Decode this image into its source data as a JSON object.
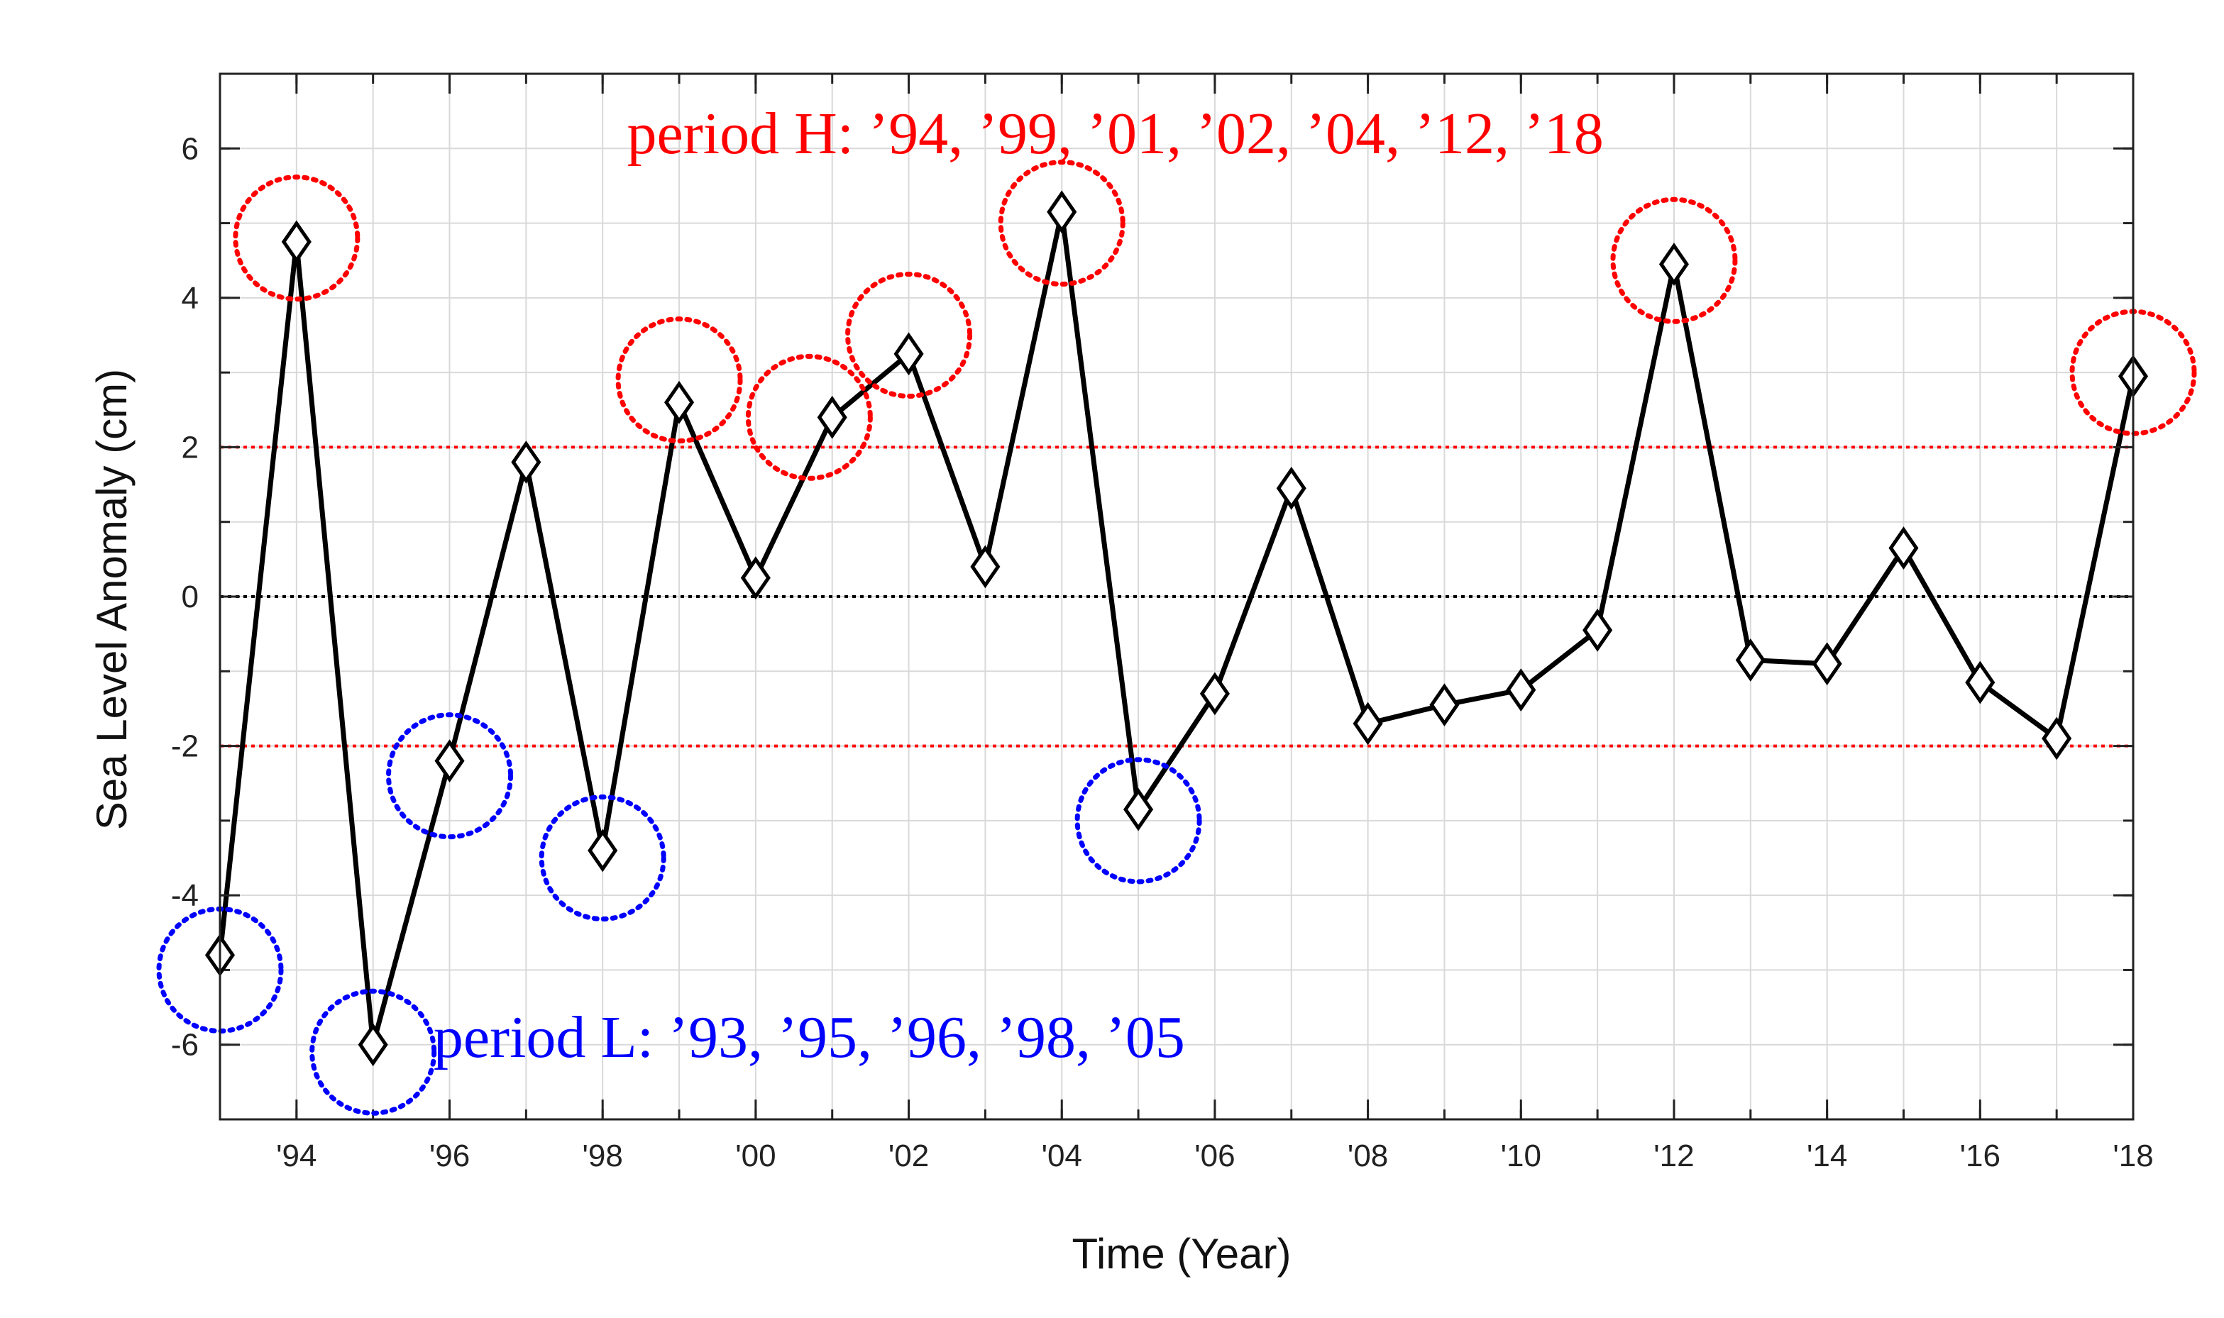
{
  "chart_data": {
    "type": "line",
    "xlabel": "Time (Year)",
    "ylabel": "Sea Level Anomaly (cm)",
    "xlim": [
      1993,
      2018
    ],
    "ylim": [
      -7,
      7
    ],
    "x_ticks": [
      1994,
      1996,
      1998,
      2000,
      2002,
      2004,
      2006,
      2008,
      2010,
      2012,
      2014,
      2016,
      2018
    ],
    "x_tick_labels": [
      "'94",
      "'96",
      "'98",
      "'00",
      "'02",
      "'04",
      "'06",
      "'08",
      "'10",
      "'12",
      "'14",
      "'16",
      "'18"
    ],
    "y_ticks": [
      -6,
      -4,
      -2,
      0,
      2,
      4,
      6
    ],
    "y_tick_labels": [
      "-6",
      "-4",
      "-2",
      "0",
      "2",
      "4",
      "6"
    ],
    "grid": true,
    "series": [
      {
        "name": "Sea Level Anomaly",
        "color": "#000000",
        "marker": "diamond",
        "x": [
          1993,
          1994,
          1995,
          1996,
          1997,
          1998,
          1999,
          2000,
          2001,
          2002,
          2003,
          2004,
          2005,
          2006,
          2007,
          2008,
          2009,
          2010,
          2011,
          2012,
          2013,
          2014,
          2015,
          2016,
          2017,
          2018
        ],
        "values": [
          -4.8,
          4.75,
          -6.0,
          -2.2,
          1.8,
          -3.4,
          2.6,
          0.25,
          2.4,
          3.25,
          0.4,
          5.15,
          -2.85,
          -1.3,
          1.45,
          -1.7,
          -1.45,
          -1.25,
          -0.45,
          4.45,
          -0.85,
          -0.9,
          0.65,
          -1.15,
          -1.9,
          2.95
        ]
      }
    ],
    "reference_lines": [
      {
        "y": 2,
        "color": "#ff0000",
        "style": "dotted"
      },
      {
        "y": 0,
        "color": "#000000",
        "style": "dotted"
      },
      {
        "y": -2,
        "color": "#ff0000",
        "style": "dotted"
      }
    ],
    "highlight_circles": [
      {
        "x": 1994,
        "y": 4.8,
        "color": "#ff0000"
      },
      {
        "x": 1999,
        "y": 2.9,
        "color": "#ff0000"
      },
      {
        "x": 2000.7,
        "y": 2.4,
        "color": "#ff0000"
      },
      {
        "x": 2002,
        "y": 3.5,
        "color": "#ff0000"
      },
      {
        "x": 2004,
        "y": 5.0,
        "color": "#ff0000"
      },
      {
        "x": 2012,
        "y": 4.5,
        "color": "#ff0000"
      },
      {
        "x": 2018,
        "y": 3.0,
        "color": "#ff0000"
      },
      {
        "x": 1993,
        "y": -5.0,
        "color": "#0000ff"
      },
      {
        "x": 1995,
        "y": -6.1,
        "color": "#0000ff"
      },
      {
        "x": 1996,
        "y": -2.4,
        "color": "#0000ff"
      },
      {
        "x": 1998,
        "y": -3.5,
        "color": "#0000ff"
      },
      {
        "x": 2005,
        "y": -3.0,
        "color": "#0000ff"
      }
    ],
    "annotations": [
      {
        "text": "period H: ’94, ’99, ’01, ’02, ’04, ’12, ’18",
        "x": 2004.7,
        "y": 6.2,
        "color": "#ff0000"
      },
      {
        "text": "period L: ’93, ’95, ’96, ’98, ’05",
        "x": 2000.7,
        "y": -5.9,
        "color": "#0000ff"
      }
    ]
  }
}
